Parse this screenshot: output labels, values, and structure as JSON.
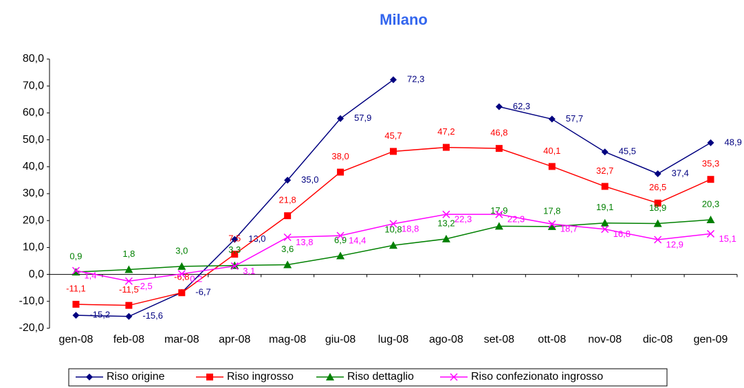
{
  "chart_data": {
    "type": "line",
    "title": "Milano",
    "categories": [
      "gen-08",
      "feb-08",
      "mar-08",
      "apr-08",
      "mag-08",
      "giu-08",
      "lug-08",
      "ago-08",
      "set-08",
      "ott-08",
      "nov-08",
      "dic-08",
      "gen-09"
    ],
    "ylim": [
      -20,
      80
    ],
    "yticks": [
      {
        "value": -20,
        "label": "-20,0"
      },
      {
        "value": -10,
        "label": "-10,0"
      },
      {
        "value": 0,
        "label": "0,0"
      },
      {
        "value": 10,
        "label": "10,0"
      },
      {
        "value": 20,
        "label": "20,0"
      },
      {
        "value": 30,
        "label": "30,0"
      },
      {
        "value": 40,
        "label": "40,0"
      },
      {
        "value": 50,
        "label": "50,0"
      },
      {
        "value": 60,
        "label": "60,0"
      },
      {
        "value": 70,
        "label": "70,0"
      },
      {
        "value": 80,
        "label": "80,0"
      }
    ],
    "series": [
      {
        "name": "Riso origine",
        "color": "#000080",
        "marker": "diamond",
        "values": [
          -15.2,
          -15.6,
          -6.7,
          13.0,
          35.0,
          57.9,
          72.3,
          null,
          62.3,
          57.7,
          45.5,
          37.4,
          48.9
        ],
        "value_labels": [
          "-15,2",
          "-15,6",
          "-6,7",
          "13,0",
          "35,0",
          "57,9",
          "72,3",
          null,
          "62,3",
          "57,7",
          "45,5",
          "37,4",
          "48,9"
        ]
      },
      {
        "name": "Riso ingrosso",
        "color": "#ff0000",
        "marker": "square",
        "values": [
          -11.1,
          -11.5,
          -6.8,
          7.5,
          21.8,
          38.0,
          45.7,
          47.2,
          46.8,
          40.1,
          32.7,
          26.5,
          35.3
        ],
        "value_labels": [
          "-11,1",
          "-11,5",
          "-6,8",
          "7,5",
          "21,8",
          "38,0",
          "45,7",
          "47,2",
          "46,8",
          "40,1",
          "32,7",
          "26,5",
          "35,3"
        ]
      },
      {
        "name": "Riso dettaglio",
        "color": "#008000",
        "marker": "triangle",
        "values": [
          0.9,
          1.8,
          3.0,
          3.3,
          3.6,
          6.9,
          10.8,
          13.2,
          17.9,
          17.8,
          19.1,
          18.9,
          20.3
        ],
        "value_labels": [
          "0,9",
          "1,8",
          "3,0",
          "3,3",
          "3,6",
          "6,9",
          "10,8",
          "13,2",
          "17,9",
          "17,8",
          "19,1",
          "18,9",
          "20,3"
        ]
      },
      {
        "name": "Riso confezionato ingrosso",
        "color": "#ff00ff",
        "marker": "x",
        "values": [
          1.4,
          -2.5,
          0.2,
          3.1,
          13.8,
          14.4,
          18.8,
          22.3,
          22.3,
          18.7,
          16.8,
          12.9,
          15.1
        ],
        "value_labels": [
          "1,4",
          "-2,5",
          "0,2",
          "3,1",
          "13,8",
          "14,4",
          "18,8",
          "22,3",
          "22,3",
          "18,7",
          "16,8",
          "12,9",
          "15,1"
        ]
      }
    ]
  }
}
